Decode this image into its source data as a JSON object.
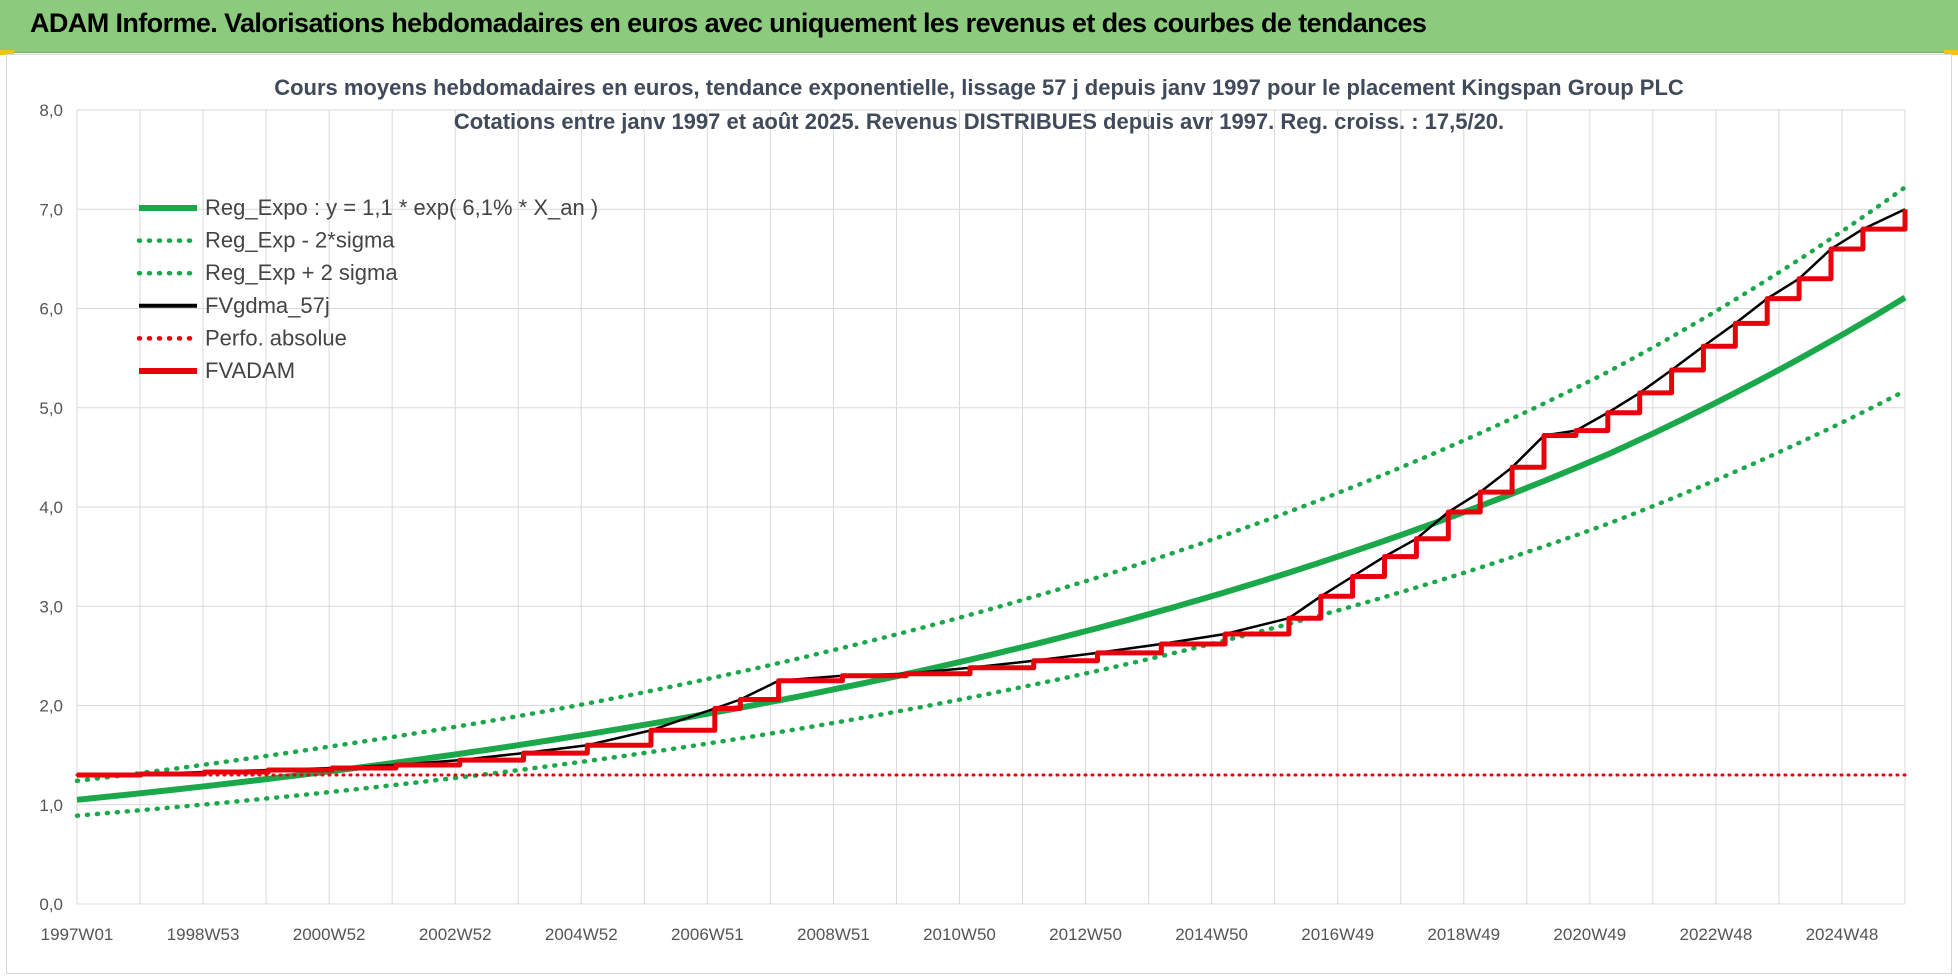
{
  "banner": {
    "title": "ADAM Informe. Valorisations hebdomadaires en euros avec uniquement les revenus et des courbes de tendances"
  },
  "colors": {
    "banner_bg": "#8ccb7e",
    "reg_green": "#1aa84b",
    "black": "#000000",
    "red": "#e8000b",
    "grid": "#d9d9d9"
  },
  "chart_data": {
    "type": "line",
    "title_line1": "Cours moyens hebdomadaires en euros, tendance exponentielle, lissage 57 j depuis janv 1997 pour le placement Kingspan Group PLC",
    "title_line2": "Cotations entre janv 1997 et août 2025.  Revenus DISTRIBUES depuis avr 1997. Reg.  croiss. : 17,5/20.",
    "xlabel": "",
    "ylabel": "",
    "x_range": [
      "1997W01",
      "2025W35"
    ],
    "x_tick_labels": [
      "1997W01",
      "1998W53",
      "2000W52",
      "2002W52",
      "2004W52",
      "2006W51",
      "2008W51",
      "2010W50",
      "2012W50",
      "2014W50",
      "2016W49",
      "2018W49",
      "2020W49",
      "2022W48",
      "2024W48"
    ],
    "ylim": [
      0,
      8
    ],
    "y_tick_labels": [
      "0,0",
      "1,0",
      "2,0",
      "3,0",
      "4,0",
      "5,0",
      "6,0",
      "7,0",
      "8,0"
    ],
    "grid": true,
    "legend_position": "top-left",
    "legend": [
      {
        "label": "Reg_Expo : y = 1,1 * exp( 6,1% *  X_an )",
        "color": "#1aa84b",
        "style": "solid"
      },
      {
        "label": "Reg_Exp - 2*sigma",
        "color": "#1aa84b",
        "style": "dotted"
      },
      {
        "label": "Reg_Exp + 2 sigma",
        "color": "#1aa84b",
        "style": "dotted"
      },
      {
        "label": "FVgdma_57j",
        "color": "#000000",
        "style": "solid-thin"
      },
      {
        "label": "Perfo. absolue",
        "color": "#e8000b",
        "style": "dotted"
      },
      {
        "label": "FVADAM",
        "color": "#e8000b",
        "style": "solid"
      }
    ],
    "series": [
      {
        "name": "Reg_Expo : y = 1,1 * exp( 6,1% *  X_an )",
        "x": [
          1997.0,
          2001.0,
          2005.0,
          2009.0,
          2013.0,
          2017.0,
          2021.0,
          2025.66
        ],
        "y": [
          1.05,
          1.34,
          1.71,
          2.18,
          2.78,
          3.55,
          4.53,
          6.11
        ]
      },
      {
        "name": "Reg_Exp - 2*sigma",
        "x": [
          1997.0,
          2001.0,
          2005.0,
          2009.0,
          2013.0,
          2017.0,
          2021.0,
          2025.66
        ],
        "y": [
          0.89,
          1.13,
          1.44,
          1.84,
          2.35,
          3.0,
          3.83,
          5.17
        ]
      },
      {
        "name": "Reg_Exp + 2 sigma",
        "x": [
          1997.0,
          2001.0,
          2005.0,
          2009.0,
          2013.0,
          2017.0,
          2021.0,
          2025.66
        ],
        "y": [
          1.24,
          1.59,
          2.02,
          2.58,
          3.29,
          4.2,
          5.36,
          7.22
        ]
      },
      {
        "name": "FVgdma_57j",
        "x": [
          1997.0,
          1998.0,
          1999.0,
          2000.0,
          2001.0,
          2002.0,
          2003.0,
          2004.0,
          2005.0,
          2006.0,
          2007.0,
          2007.4,
          2008.0,
          2009.0,
          2010.0,
          2011.0,
          2012.0,
          2013.0,
          2014.0,
          2015.0,
          2016.0,
          2016.5,
          2017.0,
          2017.5,
          2018.0,
          2018.5,
          2019.0,
          2019.5,
          2020.0,
          2020.5,
          2021.0,
          2021.5,
          2022.0,
          2022.5,
          2023.0,
          2023.5,
          2024.0,
          2024.5,
          2025.0,
          2025.66
        ],
        "y": [
          1.3,
          1.31,
          1.33,
          1.35,
          1.37,
          1.4,
          1.45,
          1.52,
          1.6,
          1.75,
          1.97,
          2.06,
          2.25,
          2.3,
          2.32,
          2.38,
          2.45,
          2.53,
          2.62,
          2.72,
          2.88,
          3.1,
          3.3,
          3.5,
          3.68,
          3.95,
          4.15,
          4.4,
          4.72,
          4.77,
          4.95,
          5.15,
          5.38,
          5.62,
          5.85,
          6.1,
          6.3,
          6.6,
          6.8,
          7.0
        ]
      },
      {
        "name": "Perfo. absolue",
        "x": [
          1997.0,
          2025.66
        ],
        "y": [
          1.3,
          1.3
        ]
      },
      {
        "name": "FVADAM",
        "x": [
          1997.0,
          1998.0,
          1999.0,
          2000.0,
          2001.0,
          2002.0,
          2003.0,
          2004.0,
          2005.0,
          2006.0,
          2007.0,
          2007.4,
          2008.0,
          2009.0,
          2010.0,
          2011.0,
          2012.0,
          2013.0,
          2014.0,
          2015.0,
          2016.0,
          2016.5,
          2017.0,
          2017.5,
          2018.0,
          2018.5,
          2019.0,
          2019.5,
          2020.0,
          2020.5,
          2021.0,
          2021.5,
          2022.0,
          2022.5,
          2023.0,
          2023.5,
          2024.0,
          2024.5,
          2025.0,
          2025.66
        ],
        "y": [
          1.3,
          1.31,
          1.33,
          1.35,
          1.37,
          1.4,
          1.45,
          1.52,
          1.6,
          1.75,
          1.97,
          2.06,
          2.25,
          2.3,
          2.32,
          2.38,
          2.45,
          2.53,
          2.62,
          2.72,
          2.88,
          3.1,
          3.3,
          3.5,
          3.68,
          3.95,
          4.15,
          4.4,
          4.72,
          4.77,
          4.95,
          5.15,
          5.38,
          5.62,
          5.85,
          6.1,
          6.3,
          6.6,
          6.8,
          7.0
        ]
      }
    ]
  }
}
